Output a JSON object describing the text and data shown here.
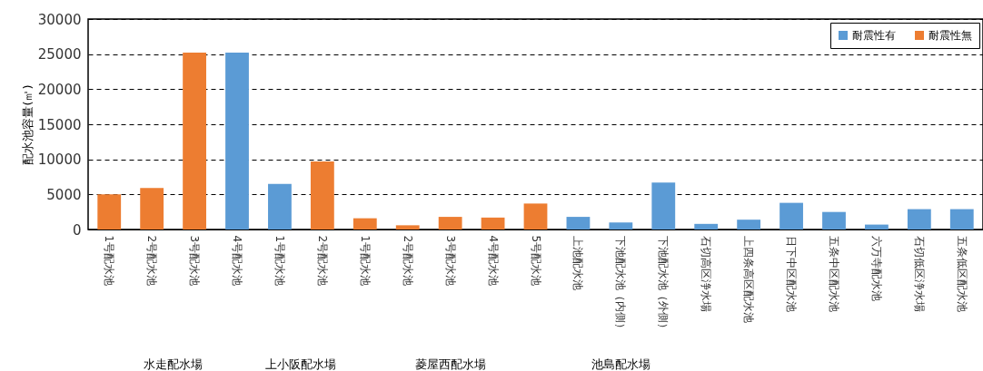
{
  "chart_data": {
    "type": "bar",
    "ylabel": "配水池容量(㎥)",
    "categories": [
      "1号配水池",
      "2号配水池",
      "3号配水池",
      "4号配水池",
      "1号配水池",
      "2号配水池",
      "1号配水池",
      "2号配水池",
      "3号配水池",
      "4号配水池",
      "5号配水池",
      "上池配水池",
      "下池配水池（内側）",
      "下池配水池（外側）",
      "石切高区浄水場",
      "上四条高区配水池",
      "日下中区配水池",
      "五条中区配水池",
      "六万寺配水池",
      "石切低区浄水場",
      "五条低区配水池"
    ],
    "series": [
      {
        "name": "耐震性有",
        "color": "#5b9bd5",
        "values": [
          null,
          null,
          null,
          25200,
          6500,
          null,
          null,
          null,
          null,
          null,
          null,
          1800,
          1000,
          6700,
          800,
          1400,
          3800,
          2500,
          700,
          2900,
          2900
        ]
      },
      {
        "name": "耐震性無",
        "color": "#ed7d31",
        "values": [
          5000,
          5900,
          25200,
          null,
          null,
          9700,
          1600,
          600,
          1800,
          1700,
          3700,
          null,
          null,
          null,
          null,
          null,
          null,
          null,
          null,
          null,
          null
        ]
      }
    ],
    "ylim": [
      0,
      30000
    ],
    "yticks": [
      0,
      5000,
      10000,
      15000,
      20000,
      25000,
      30000
    ],
    "grid": "y",
    "legend": "top right",
    "annotations": [
      "水走配水場",
      "上小阪配水場",
      "菱屋西配水場",
      "池島配水場"
    ]
  }
}
